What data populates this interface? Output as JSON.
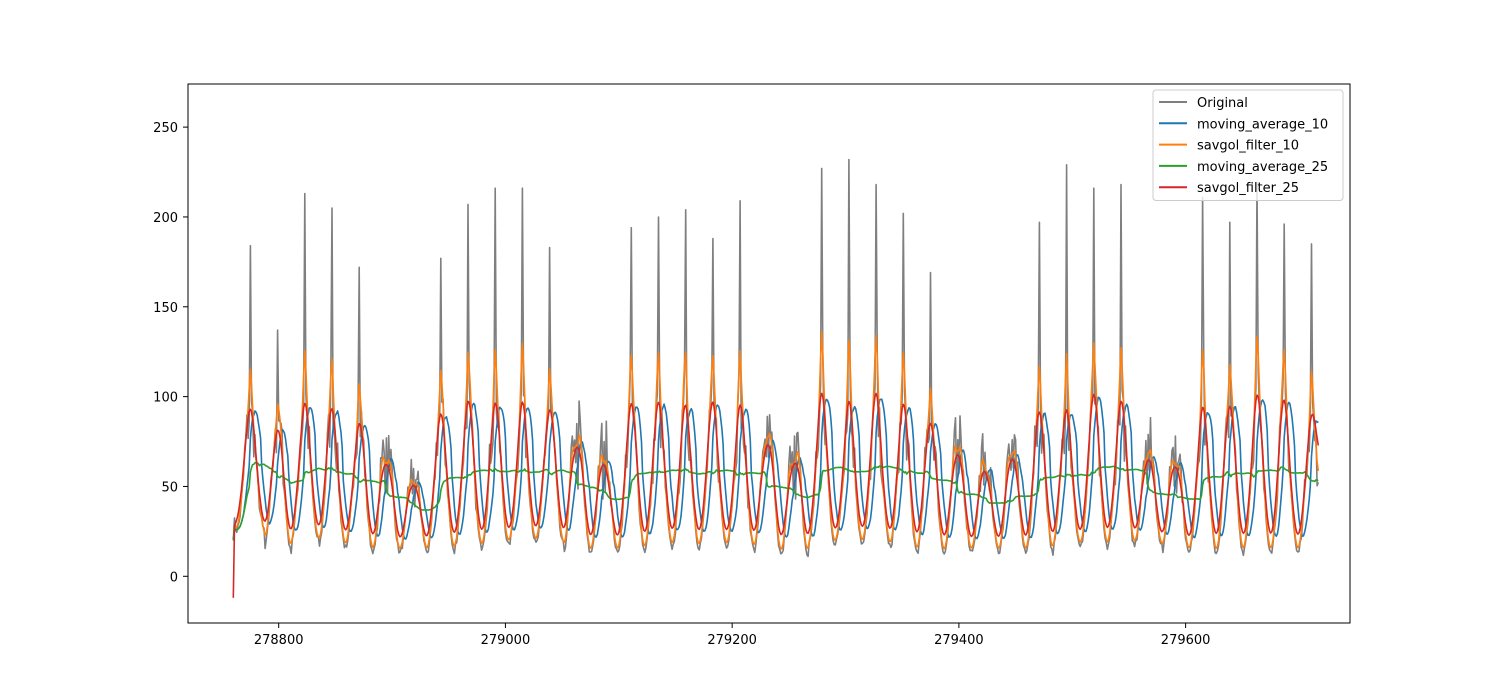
{
  "chart_data": {
    "type": "line",
    "title": "",
    "xlabel": "",
    "ylabel": "",
    "xlim": [
      278720,
      279745
    ],
    "ylim": [
      -26,
      274
    ],
    "x_ticks": [
      278800,
      279000,
      279200,
      279400,
      279600
    ],
    "y_ticks": [
      0,
      50,
      100,
      150,
      200,
      250
    ],
    "x_start": 278760,
    "x_end": 279717,
    "legend_position": "upper right",
    "series": [
      {
        "name": "Original",
        "color": "#7f7f7f",
        "kind": "original"
      },
      {
        "name": "moving_average_10",
        "color": "#1f77b4",
        "kind": "ma10"
      },
      {
        "name": "savgol_filter_10",
        "color": "#ff7f0e",
        "kind": "sg10"
      },
      {
        "name": "moving_average_25",
        "color": "#2ca02c",
        "kind": "ma25"
      },
      {
        "name": "savgol_filter_25",
        "color": "#d62728",
        "kind": "sg25"
      }
    ],
    "daily_cycles": [
      {
        "x": 278775,
        "peak": 184,
        "low": 26
      },
      {
        "x": 278799,
        "peak": 137,
        "low": 14
      },
      {
        "x": 278823,
        "peak": 213,
        "low": 20
      },
      {
        "x": 278847,
        "peak": 205,
        "low": 16
      },
      {
        "x": 278871,
        "peak": 172,
        "low": 14
      },
      {
        "x": 278895,
        "peak": 77,
        "low": 13
      },
      {
        "x": 278919,
        "peak": 60,
        "low": 14
      },
      {
        "x": 278943,
        "peak": 177,
        "low": 13
      },
      {
        "x": 278967,
        "peak": 207,
        "low": 16
      },
      {
        "x": 278991,
        "peak": 216,
        "low": 17
      },
      {
        "x": 279015,
        "peak": 216,
        "low": 18
      },
      {
        "x": 279039,
        "peak": 183,
        "low": 18
      },
      {
        "x": 279063,
        "peak": 85,
        "low": 13
      },
      {
        "x": 279087,
        "peak": 75,
        "low": 13
      },
      {
        "x": 279111,
        "peak": 194,
        "low": 14
      },
      {
        "x": 279135,
        "peak": 200,
        "low": 16
      },
      {
        "x": 279159,
        "peak": 204,
        "low": 16
      },
      {
        "x": 279183,
        "peak": 188,
        "low": 17
      },
      {
        "x": 279207,
        "peak": 209,
        "low": 17
      },
      {
        "x": 279231,
        "peak": 89,
        "low": 13
      },
      {
        "x": 279255,
        "peak": 78,
        "low": 11
      },
      {
        "x": 279279,
        "peak": 227,
        "low": 17
      },
      {
        "x": 279303,
        "peak": 232,
        "low": 18
      },
      {
        "x": 279327,
        "peak": 218,
        "low": 18
      },
      {
        "x": 279351,
        "peak": 202,
        "low": 14
      },
      {
        "x": 279375,
        "peak": 169,
        "low": 13
      },
      {
        "x": 279399,
        "peak": 76,
        "low": 14
      },
      {
        "x": 279423,
        "peak": 69,
        "low": 14
      },
      {
        "x": 279447,
        "peak": 76,
        "low": 13
      },
      {
        "x": 279471,
        "peak": 197,
        "low": 13
      },
      {
        "x": 279495,
        "peak": 229,
        "low": 16
      },
      {
        "x": 279519,
        "peak": 216,
        "low": 16
      },
      {
        "x": 279543,
        "peak": 218,
        "low": 17
      },
      {
        "x": 279567,
        "peak": 79,
        "low": 18
      },
      {
        "x": 279591,
        "peak": 78,
        "low": 13
      },
      {
        "x": 279615,
        "peak": 211,
        "low": 13
      },
      {
        "x": 279639,
        "peak": 197,
        "low": 13
      },
      {
        "x": 279663,
        "peak": 219,
        "low": 15
      },
      {
        "x": 279687,
        "peak": 196,
        "low": 13
      },
      {
        "x": 279711,
        "peak": 185,
        "low": 13
      }
    ]
  }
}
